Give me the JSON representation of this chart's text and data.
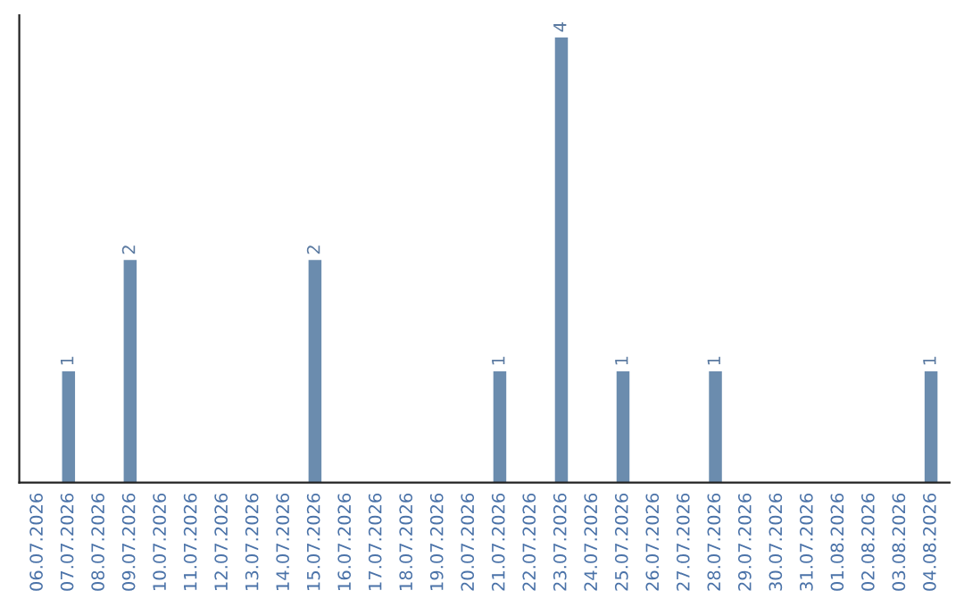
{
  "chart_data": {
    "type": "bar",
    "categories": [
      "06.07.2026",
      "07.07.2026",
      "08.07.2026",
      "09.07.2026",
      "10.07.2026",
      "11.07.2026",
      "12.07.2026",
      "13.07.2026",
      "14.07.2026",
      "15.07.2026",
      "16.07.2026",
      "17.07.2026",
      "18.07.2026",
      "19.07.2026",
      "20.07.2026",
      "21.07.2026",
      "22.07.2026",
      "23.07.2026",
      "24.07.2026",
      "25.07.2026",
      "26.07.2026",
      "27.07.2026",
      "28.07.2026",
      "29.07.2026",
      "30.07.2026",
      "31.07.2026",
      "01.08.2026",
      "02.08.2026",
      "03.08.2026",
      "04.08.2026"
    ],
    "values": [
      0,
      1,
      0,
      2,
      0,
      0,
      0,
      0,
      0,
      2,
      0,
      0,
      0,
      0,
      0,
      1,
      0,
      4,
      0,
      1,
      0,
      0,
      1,
      0,
      0,
      0,
      0,
      0,
      0,
      1
    ],
    "value_labels": [
      null,
      "1",
      null,
      "2",
      null,
      null,
      null,
      null,
      null,
      "2",
      null,
      null,
      null,
      null,
      null,
      "1",
      null,
      "4",
      null,
      "1",
      null,
      null,
      "1",
      null,
      null,
      null,
      null,
      null,
      null,
      "1"
    ],
    "color": "#6b8cae",
    "tick_labels": "x",
    "grid": false
  }
}
